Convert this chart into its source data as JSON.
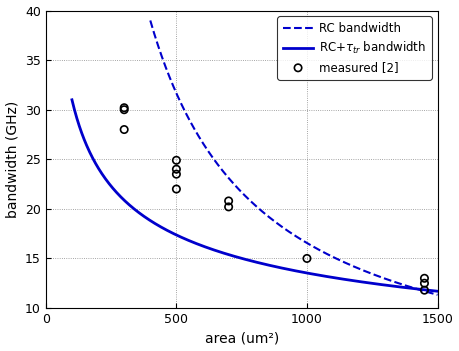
{
  "title": "",
  "xlabel": "area (um²)",
  "ylabel": "bandwidth (GHz)",
  "xlim": [
    0,
    1500
  ],
  "ylim": [
    10,
    40
  ],
  "xticks": [
    0,
    500,
    1000,
    1500
  ],
  "yticks": [
    10,
    15,
    20,
    25,
    30,
    35,
    40
  ],
  "curve_color": "#0000cc",
  "measured_x": [
    300,
    300,
    300,
    500,
    500,
    500,
    500,
    700,
    700,
    1000,
    1450,
    1450,
    1450
  ],
  "measured_y": [
    30.2,
    30.0,
    28.0,
    24.9,
    24.0,
    23.5,
    22.0,
    20.8,
    20.2,
    15.0,
    13.0,
    12.5,
    11.8
  ],
  "legend_RC": "RC bandwidth",
  "legend_measured": "measured [2]",
  "background_color": "#ffffff",
  "RC_A": 16000,
  "RC_n": 1.0,
  "RC_x_start": 400,
  "RC_x_end": 1500,
  "sol_A": 56.0,
  "sol_n": 0.42,
  "sol_x_start": 100,
  "sol_x_end": 1500
}
